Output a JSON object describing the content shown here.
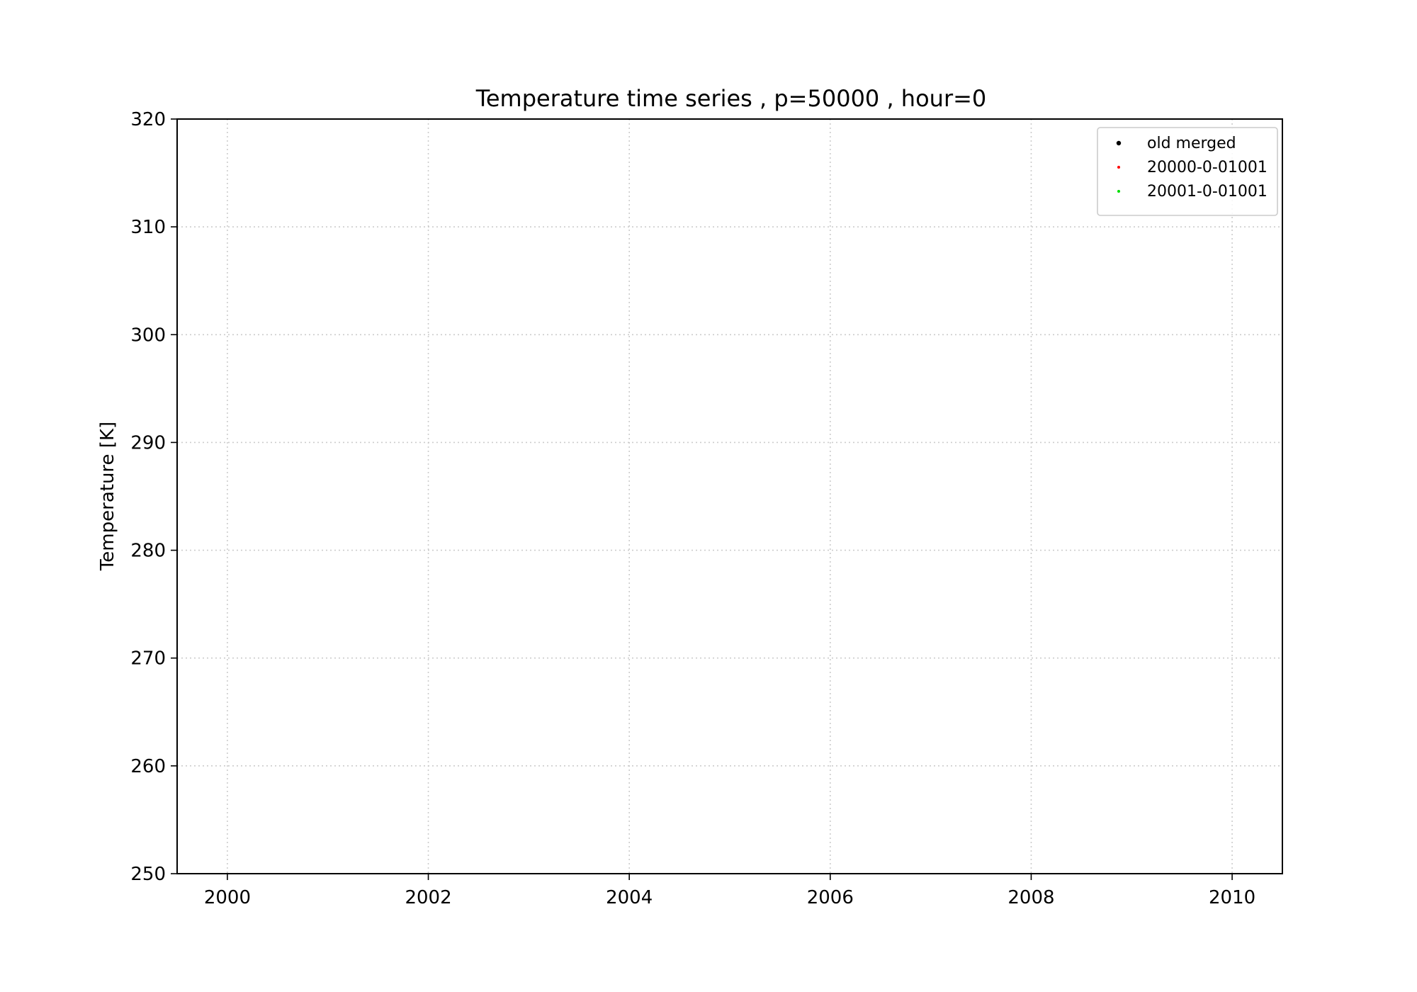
{
  "chart_data": {
    "type": "scatter",
    "title": "Temperature time series , p=50000 , hour=0",
    "xlabel": "",
    "ylabel": "Temperature [K]",
    "xlim": [
      1999.5,
      2010.5
    ],
    "ylim": [
      250,
      320
    ],
    "x_ticks": [
      2000,
      2002,
      2004,
      2006,
      2008,
      2010
    ],
    "x_tick_labels": [
      "2000",
      "2002",
      "2004",
      "2006",
      "2008",
      "2010"
    ],
    "y_ticks": [
      250,
      260,
      270,
      280,
      290,
      300,
      310,
      320
    ],
    "y_tick_labels": [
      "250",
      "260",
      "270",
      "280",
      "290",
      "300",
      "310",
      "320"
    ],
    "grid": true,
    "legend_position": "top-right",
    "series": [
      {
        "name": "old merged",
        "color": "#000000",
        "x": [],
        "y": []
      },
      {
        "name": "20000-0-01001",
        "color": "#ff0000",
        "x": [],
        "y": []
      },
      {
        "name": "20001-0-01001",
        "color": "#00dd00",
        "x": [],
        "y": []
      }
    ]
  }
}
